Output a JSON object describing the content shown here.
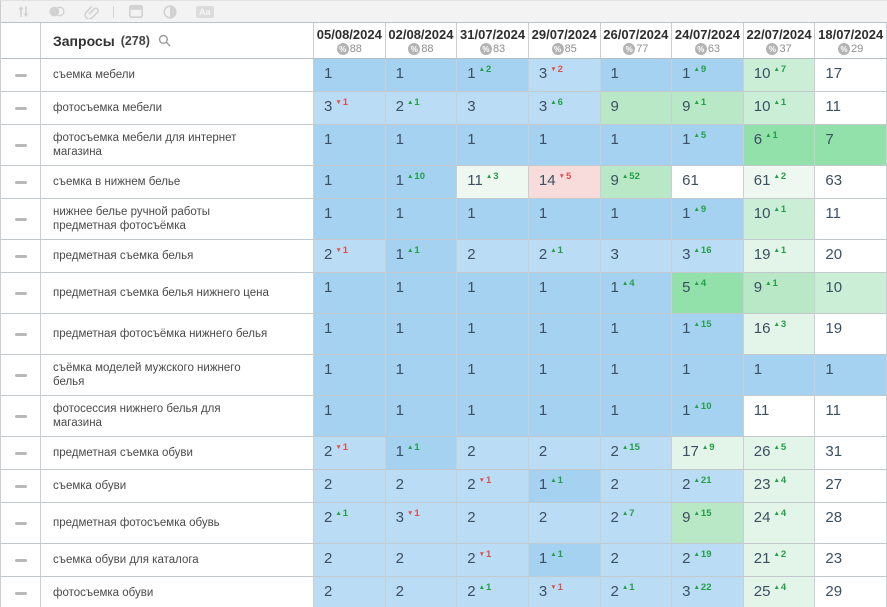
{
  "toolbar": {
    "icons": [
      {
        "name": "sort-icon"
      },
      {
        "name": "circles-icon"
      },
      {
        "name": "link-icon"
      },
      {
        "name": "divider"
      },
      {
        "name": "window-icon"
      },
      {
        "name": "contrast-icon"
      },
      {
        "name": "text-case-icon",
        "label": "Aa"
      }
    ]
  },
  "palette": {
    "b1": "#a4d2f0",
    "b2": "#badcf4",
    "g1": "#92e0aa",
    "g2": "#b9e8c6",
    "g3": "#cbeed6",
    "pg": "#e3f4e8",
    "pg2": "#eef8f1",
    "pk": "#f8dcdc",
    "w": "#ffffff",
    "delta_up": "#23a047",
    "delta_down": "#e04f4f"
  },
  "table": {
    "queries_label": "Запросы",
    "queries_count": "(278)",
    "columns": [
      {
        "date": "05/08/2024",
        "percent": "88"
      },
      {
        "date": "02/08/2024",
        "percent": "88"
      },
      {
        "date": "31/07/2024",
        "percent": "83"
      },
      {
        "date": "29/07/2024",
        "percent": "85"
      },
      {
        "date": "26/07/2024",
        "percent": "77"
      },
      {
        "date": "24/07/2024",
        "percent": "63"
      },
      {
        "date": "22/07/2024",
        "percent": "37"
      },
      {
        "date": "18/07/2024",
        "percent": "29"
      }
    ],
    "rows": [
      {
        "query": "съемка мебели",
        "cells": [
          {
            "v": "1",
            "bg": "b1"
          },
          {
            "v": "1",
            "bg": "b1"
          },
          {
            "v": "1",
            "d": "2",
            "dir": "up",
            "bg": "b1"
          },
          {
            "v": "3",
            "d": "2",
            "dir": "down",
            "bg": "b2"
          },
          {
            "v": "1",
            "bg": "b1"
          },
          {
            "v": "1",
            "d": "9",
            "dir": "up",
            "bg": "b1"
          },
          {
            "v": "10",
            "d": "7",
            "dir": "up",
            "bg": "g3"
          },
          {
            "v": "17",
            "bg": "w"
          }
        ]
      },
      {
        "query": "фотосъемка мебели",
        "cells": [
          {
            "v": "3",
            "d": "1",
            "dir": "down",
            "bg": "b2"
          },
          {
            "v": "2",
            "d": "1",
            "dir": "up",
            "bg": "b2"
          },
          {
            "v": "3",
            "bg": "b2"
          },
          {
            "v": "3",
            "d": "6",
            "dir": "up",
            "bg": "b2"
          },
          {
            "v": "9",
            "bg": "g2"
          },
          {
            "v": "9",
            "d": "1",
            "dir": "up",
            "bg": "g2"
          },
          {
            "v": "10",
            "d": "1",
            "dir": "up",
            "bg": "g3"
          },
          {
            "v": "11",
            "bg": "w"
          }
        ]
      },
      {
        "query": "фотосъемка мебели для интернет магазина",
        "cells": [
          {
            "v": "1",
            "bg": "b1"
          },
          {
            "v": "1",
            "bg": "b1"
          },
          {
            "v": "1",
            "bg": "b1"
          },
          {
            "v": "1",
            "bg": "b1"
          },
          {
            "v": "1",
            "bg": "b1"
          },
          {
            "v": "1",
            "d": "5",
            "dir": "up",
            "bg": "b1"
          },
          {
            "v": "6",
            "d": "1",
            "dir": "up",
            "bg": "g1"
          },
          {
            "v": "7",
            "bg": "g1"
          }
        ]
      },
      {
        "query": "съемка в нижнем белье",
        "cells": [
          {
            "v": "1",
            "bg": "b1"
          },
          {
            "v": "1",
            "d": "10",
            "dir": "up",
            "bg": "b1"
          },
          {
            "v": "11",
            "d": "3",
            "dir": "up",
            "bg": "pg2"
          },
          {
            "v": "14",
            "d": "5",
            "dir": "down",
            "bg": "pk"
          },
          {
            "v": "9",
            "d": "52",
            "dir": "up",
            "bg": "g2"
          },
          {
            "v": "61",
            "bg": "w"
          },
          {
            "v": "61",
            "d": "2",
            "dir": "up",
            "bg": "pg2"
          },
          {
            "v": "63",
            "bg": "w"
          }
        ]
      },
      {
        "query": "нижнее белье ручной работы предметная фотосъёмка",
        "cells": [
          {
            "v": "1",
            "bg": "b1"
          },
          {
            "v": "1",
            "bg": "b1"
          },
          {
            "v": "1",
            "bg": "b1"
          },
          {
            "v": "1",
            "bg": "b1"
          },
          {
            "v": "1",
            "bg": "b1"
          },
          {
            "v": "1",
            "d": "9",
            "dir": "up",
            "bg": "b1"
          },
          {
            "v": "10",
            "d": "1",
            "dir": "up",
            "bg": "g3"
          },
          {
            "v": "11",
            "bg": "w"
          }
        ]
      },
      {
        "query": "предметная съемка белья",
        "cells": [
          {
            "v": "2",
            "d": "1",
            "dir": "down",
            "bg": "b2"
          },
          {
            "v": "1",
            "d": "1",
            "dir": "up",
            "bg": "b1"
          },
          {
            "v": "2",
            "bg": "b2"
          },
          {
            "v": "2",
            "d": "1",
            "dir": "up",
            "bg": "b2"
          },
          {
            "v": "3",
            "bg": "b2"
          },
          {
            "v": "3",
            "d": "16",
            "dir": "up",
            "bg": "b2"
          },
          {
            "v": "19",
            "d": "1",
            "dir": "up",
            "bg": "pg"
          },
          {
            "v": "20",
            "bg": "w"
          }
        ]
      },
      {
        "query": "предметная съемка белья нижнего цена",
        "cells": [
          {
            "v": "1",
            "bg": "b1"
          },
          {
            "v": "1",
            "bg": "b1"
          },
          {
            "v": "1",
            "bg": "b1"
          },
          {
            "v": "1",
            "bg": "b1"
          },
          {
            "v": "1",
            "d": "4",
            "dir": "up",
            "bg": "b1"
          },
          {
            "v": "5",
            "d": "4",
            "dir": "up",
            "bg": "g1"
          },
          {
            "v": "9",
            "d": "1",
            "dir": "up",
            "bg": "g2"
          },
          {
            "v": "10",
            "bg": "g3"
          }
        ]
      },
      {
        "query": "предметная фотосъёмка нижнего белья",
        "cells": [
          {
            "v": "1",
            "bg": "b1"
          },
          {
            "v": "1",
            "bg": "b1"
          },
          {
            "v": "1",
            "bg": "b1"
          },
          {
            "v": "1",
            "bg": "b1"
          },
          {
            "v": "1",
            "bg": "b1"
          },
          {
            "v": "1",
            "d": "15",
            "dir": "up",
            "bg": "b1"
          },
          {
            "v": "16",
            "d": "3",
            "dir": "up",
            "bg": "pg"
          },
          {
            "v": "19",
            "bg": "w"
          }
        ]
      },
      {
        "query": "съёмка моделей мужского нижнего белья",
        "cells": [
          {
            "v": "1",
            "bg": "b1"
          },
          {
            "v": "1",
            "bg": "b1"
          },
          {
            "v": "1",
            "bg": "b1"
          },
          {
            "v": "1",
            "bg": "b1"
          },
          {
            "v": "1",
            "bg": "b1"
          },
          {
            "v": "1",
            "bg": "b1"
          },
          {
            "v": "1",
            "bg": "b1"
          },
          {
            "v": "1",
            "bg": "b1"
          }
        ]
      },
      {
        "query": "фотосессия нижнего белья для магазина",
        "cells": [
          {
            "v": "1",
            "bg": "b1"
          },
          {
            "v": "1",
            "bg": "b1"
          },
          {
            "v": "1",
            "bg": "b1"
          },
          {
            "v": "1",
            "bg": "b1"
          },
          {
            "v": "1",
            "bg": "b1"
          },
          {
            "v": "1",
            "d": "10",
            "dir": "up",
            "bg": "b1"
          },
          {
            "v": "11",
            "bg": "w"
          },
          {
            "v": "11",
            "bg": "w"
          }
        ]
      },
      {
        "query": "предметная съемка обуви",
        "cells": [
          {
            "v": "2",
            "d": "1",
            "dir": "down",
            "bg": "b2"
          },
          {
            "v": "1",
            "d": "1",
            "dir": "up",
            "bg": "b1"
          },
          {
            "v": "2",
            "bg": "b2"
          },
          {
            "v": "2",
            "bg": "b2"
          },
          {
            "v": "2",
            "d": "15",
            "dir": "up",
            "bg": "b2"
          },
          {
            "v": "17",
            "d": "9",
            "dir": "up",
            "bg": "pg"
          },
          {
            "v": "26",
            "d": "5",
            "dir": "up",
            "bg": "pg"
          },
          {
            "v": "31",
            "bg": "w"
          }
        ]
      },
      {
        "query": "съемка обуви",
        "cells": [
          {
            "v": "2",
            "bg": "b2"
          },
          {
            "v": "2",
            "bg": "b2"
          },
          {
            "v": "2",
            "d": "1",
            "dir": "down",
            "bg": "b2"
          },
          {
            "v": "1",
            "d": "1",
            "dir": "up",
            "bg": "b1"
          },
          {
            "v": "2",
            "bg": "b2"
          },
          {
            "v": "2",
            "d": "21",
            "dir": "up",
            "bg": "b2"
          },
          {
            "v": "23",
            "d": "4",
            "dir": "up",
            "bg": "pg"
          },
          {
            "v": "27",
            "bg": "w"
          }
        ]
      },
      {
        "query": "предметная фотосъемка обувь",
        "cells": [
          {
            "v": "2",
            "d": "1",
            "dir": "up",
            "bg": "b2"
          },
          {
            "v": "3",
            "d": "1",
            "dir": "down",
            "bg": "b2"
          },
          {
            "v": "2",
            "bg": "b2"
          },
          {
            "v": "2",
            "bg": "b2"
          },
          {
            "v": "2",
            "d": "7",
            "dir": "up",
            "bg": "b2"
          },
          {
            "v": "9",
            "d": "15",
            "dir": "up",
            "bg": "g2"
          },
          {
            "v": "24",
            "d": "4",
            "dir": "up",
            "bg": "pg"
          },
          {
            "v": "28",
            "bg": "w"
          }
        ]
      },
      {
        "query": "съемка обуви для каталога",
        "cells": [
          {
            "v": "2",
            "bg": "b2"
          },
          {
            "v": "2",
            "bg": "b2"
          },
          {
            "v": "2",
            "d": "1",
            "dir": "down",
            "bg": "b2"
          },
          {
            "v": "1",
            "d": "1",
            "dir": "up",
            "bg": "b1"
          },
          {
            "v": "2",
            "bg": "b2"
          },
          {
            "v": "2",
            "d": "19",
            "dir": "up",
            "bg": "b2"
          },
          {
            "v": "21",
            "d": "2",
            "dir": "up",
            "bg": "pg"
          },
          {
            "v": "23",
            "bg": "w"
          }
        ]
      },
      {
        "query": "фотосъемка обуви",
        "cells": [
          {
            "v": "2",
            "bg": "b2"
          },
          {
            "v": "2",
            "bg": "b2"
          },
          {
            "v": "2",
            "d": "1",
            "dir": "up",
            "bg": "b2"
          },
          {
            "v": "3",
            "d": "1",
            "dir": "down",
            "bg": "b2"
          },
          {
            "v": "2",
            "d": "1",
            "dir": "up",
            "bg": "b2"
          },
          {
            "v": "3",
            "d": "22",
            "dir": "up",
            "bg": "b2"
          },
          {
            "v": "25",
            "d": "4",
            "dir": "up",
            "bg": "pg"
          },
          {
            "v": "29",
            "bg": "w"
          }
        ]
      },
      {
        "query": "",
        "sliver": true,
        "cells": [
          {
            "v": "",
            "bg": "b2"
          },
          {
            "v": "",
            "bg": "b2"
          },
          {
            "v": "",
            "bg": "b2"
          },
          {
            "v": "",
            "bg": "b2"
          },
          {
            "v": "",
            "bg": "b2"
          },
          {
            "v": "",
            "bg": "b2"
          },
          {
            "v": "",
            "bg": "pg"
          },
          {
            "v": "",
            "bg": "w"
          }
        ]
      }
    ]
  }
}
